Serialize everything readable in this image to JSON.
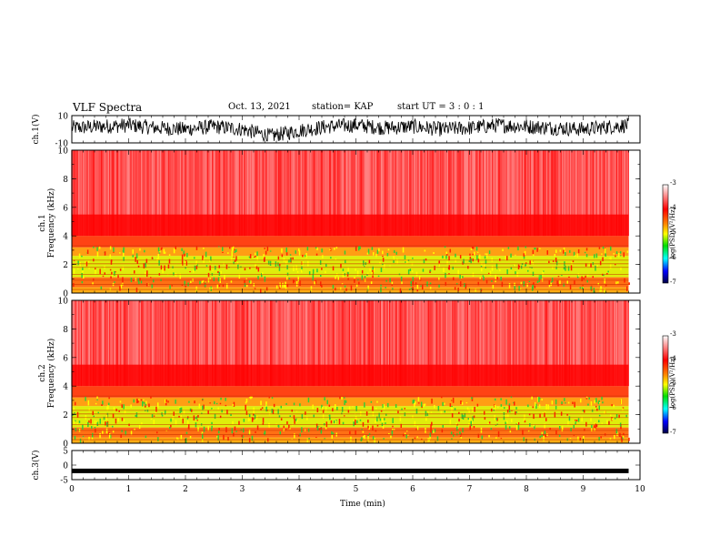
{
  "header": {
    "title": "VLF Spectra",
    "date": "Oct. 13, 2021",
    "station": "station= KAP",
    "start": "start  UT =   3 : 0  : 1"
  },
  "panels": {
    "ch1v_label": "ch.1(V)",
    "ch1_label": "ch.1\nFrequency (kHz)",
    "ch1_label_line1": "ch.1",
    "ch1_label_line2": "Frequency  (kHz)",
    "ch2_label_line1": "ch.2",
    "ch2_label_line2": "Frequency  (kHz)",
    "ch3v_label": "ch.3(V)",
    "xlabel": "Time  (min)"
  },
  "colorbar": {
    "title": "log(PSD)(V²/Hz)",
    "ticks": [
      "-3",
      "-4",
      "-5",
      "-6",
      "-7"
    ]
  },
  "chart_data": [
    {
      "type": "line",
      "panel": "ch.1(V)",
      "ylabel": "ch.1(V)",
      "ylim": [
        -10,
        10
      ],
      "yticks": [
        10,
        -10
      ],
      "xlim": [
        0,
        10
      ],
      "x": [
        0,
        0.5,
        1,
        1.5,
        2,
        2.5,
        3,
        3.5,
        4,
        4.5,
        5,
        5.5,
        6,
        6.5,
        7,
        7.5,
        8,
        8.5,
        9,
        9.5,
        9.8
      ],
      "y": [
        1,
        2,
        3,
        1,
        0,
        2,
        0,
        -5,
        -1,
        2,
        3,
        1,
        2,
        0,
        1,
        3,
        2,
        1,
        0,
        2,
        3
      ],
      "note": "noisy waveform roughly between -6 and 8 V"
    },
    {
      "type": "heatmap",
      "panel": "ch.1",
      "ylabel": "Frequency (kHz)",
      "xlim": [
        0,
        10
      ],
      "ylim": [
        0,
        10
      ],
      "yticks": [
        0,
        2,
        4,
        6,
        8,
        10
      ],
      "data_extent_min": 9.8,
      "color_range_log_psd": [
        -7,
        -3
      ]
    },
    {
      "type": "heatmap",
      "panel": "ch.2",
      "ylabel": "Frequency (kHz)",
      "xlim": [
        0,
        10
      ],
      "ylim": [
        0,
        10
      ],
      "yticks": [
        0,
        2,
        4,
        6,
        8,
        10
      ],
      "data_extent_min": 9.8,
      "color_range_log_psd": [
        -7,
        -3
      ]
    },
    {
      "type": "line",
      "panel": "ch.3(V)",
      "ylabel": "ch.3(V)",
      "ylim": [
        -5,
        5
      ],
      "yticks": [
        5,
        0,
        -5
      ],
      "xlim": [
        0,
        10
      ],
      "x": [
        0,
        9.8
      ],
      "y": [
        -2,
        -2
      ],
      "xlabel": "Time  (min)",
      "xticks": [
        0,
        1,
        2,
        3,
        4,
        5,
        6,
        7,
        8,
        9,
        10
      ]
    }
  ]
}
